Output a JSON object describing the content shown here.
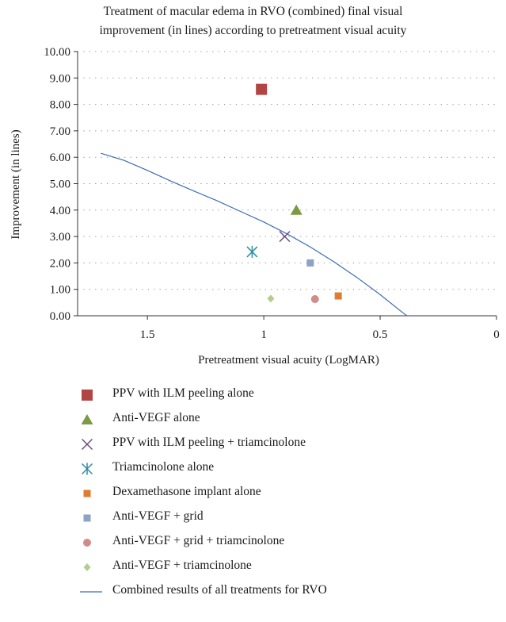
{
  "chart_data": {
    "type": "scatter",
    "title_line1": "Treatment of macular edema in RVO (combined) final visual",
    "title_line2": "improvement (in lines) according to pretreatment visual acuity",
    "xlabel": "Pretreatment visual acuity (LogMAR)",
    "ylabel": "Improvement (in lines)",
    "xlim": [
      1.8,
      0
    ],
    "ylim": [
      0,
      10
    ],
    "x_reversed": true,
    "x_ticks": [
      {
        "value": 1.5,
        "label": "1.5"
      },
      {
        "value": 1.0,
        "label": "1"
      },
      {
        "value": 0.5,
        "label": "0.5"
      },
      {
        "value": 0.0,
        "label": "0"
      }
    ],
    "y_ticks": [
      {
        "value": 0,
        "label": "0.00"
      },
      {
        "value": 1,
        "label": "1.00"
      },
      {
        "value": 2,
        "label": "2.00"
      },
      {
        "value": 3,
        "label": "3.00"
      },
      {
        "value": 4,
        "label": "4.00"
      },
      {
        "value": 5,
        "label": "5.00"
      },
      {
        "value": 6,
        "label": "6.00"
      },
      {
        "value": 7,
        "label": "7.00"
      },
      {
        "value": 8,
        "label": "8.00"
      },
      {
        "value": 9,
        "label": "9.00"
      },
      {
        "value": 10,
        "label": "10.00"
      }
    ],
    "grid": "horizontal dotted",
    "legend_position": "bottom",
    "series": [
      {
        "name": "PPV with ILM peeling alone",
        "marker": "square-large",
        "color": "#b04543",
        "points": [
          {
            "x": 1.01,
            "y": 8.57
          }
        ]
      },
      {
        "name": "Anti-VEGF alone",
        "marker": "triangle",
        "color": "#7a9a44",
        "points": [
          {
            "x": 0.86,
            "y": 4.0
          }
        ]
      },
      {
        "name": "PPV with ILM peeling + triamcinolone",
        "marker": "x",
        "color": "#6a4f7e",
        "points": [
          {
            "x": 0.91,
            "y": 3.0
          }
        ]
      },
      {
        "name": "Triamcinolone alone",
        "marker": "asterisk",
        "color": "#2f8ea4",
        "points": [
          {
            "x": 1.05,
            "y": 2.42
          }
        ]
      },
      {
        "name": "Dexamethasone implant alone",
        "marker": "square",
        "color": "#e07c32",
        "points": [
          {
            "x": 0.68,
            "y": 0.75
          }
        ]
      },
      {
        "name": "Anti-VEGF + grid",
        "marker": "square",
        "color": "#8da2c7",
        "points": [
          {
            "x": 0.8,
            "y": 2.0
          }
        ]
      },
      {
        "name": "Anti-VEGF + grid + triamcinolone",
        "marker": "circle",
        "color": "#d08c89",
        "points": [
          {
            "x": 0.78,
            "y": 0.63
          }
        ]
      },
      {
        "name": "Anti-VEGF + triamcinolone",
        "marker": "diamond",
        "color": "#b3cd8c",
        "points": [
          {
            "x": 0.97,
            "y": 0.65
          }
        ]
      },
      {
        "name": "Combined results of all treatments for RVO",
        "marker": "line",
        "color": "#3d6db0",
        "points": [
          {
            "x": 1.7,
            "y": 6.15
          },
          {
            "x": 1.6,
            "y": 5.88
          },
          {
            "x": 1.5,
            "y": 5.5
          },
          {
            "x": 1.4,
            "y": 5.1
          },
          {
            "x": 1.3,
            "y": 4.72
          },
          {
            "x": 1.2,
            "y": 4.35
          },
          {
            "x": 1.1,
            "y": 3.95
          },
          {
            "x": 1.0,
            "y": 3.55
          },
          {
            "x": 0.9,
            "y": 3.1
          },
          {
            "x": 0.8,
            "y": 2.6
          },
          {
            "x": 0.7,
            "y": 2.05
          },
          {
            "x": 0.6,
            "y": 1.45
          },
          {
            "x": 0.5,
            "y": 0.8
          },
          {
            "x": 0.4,
            "y": 0.1
          },
          {
            "x": 0.385,
            "y": 0.0
          }
        ]
      }
    ]
  }
}
